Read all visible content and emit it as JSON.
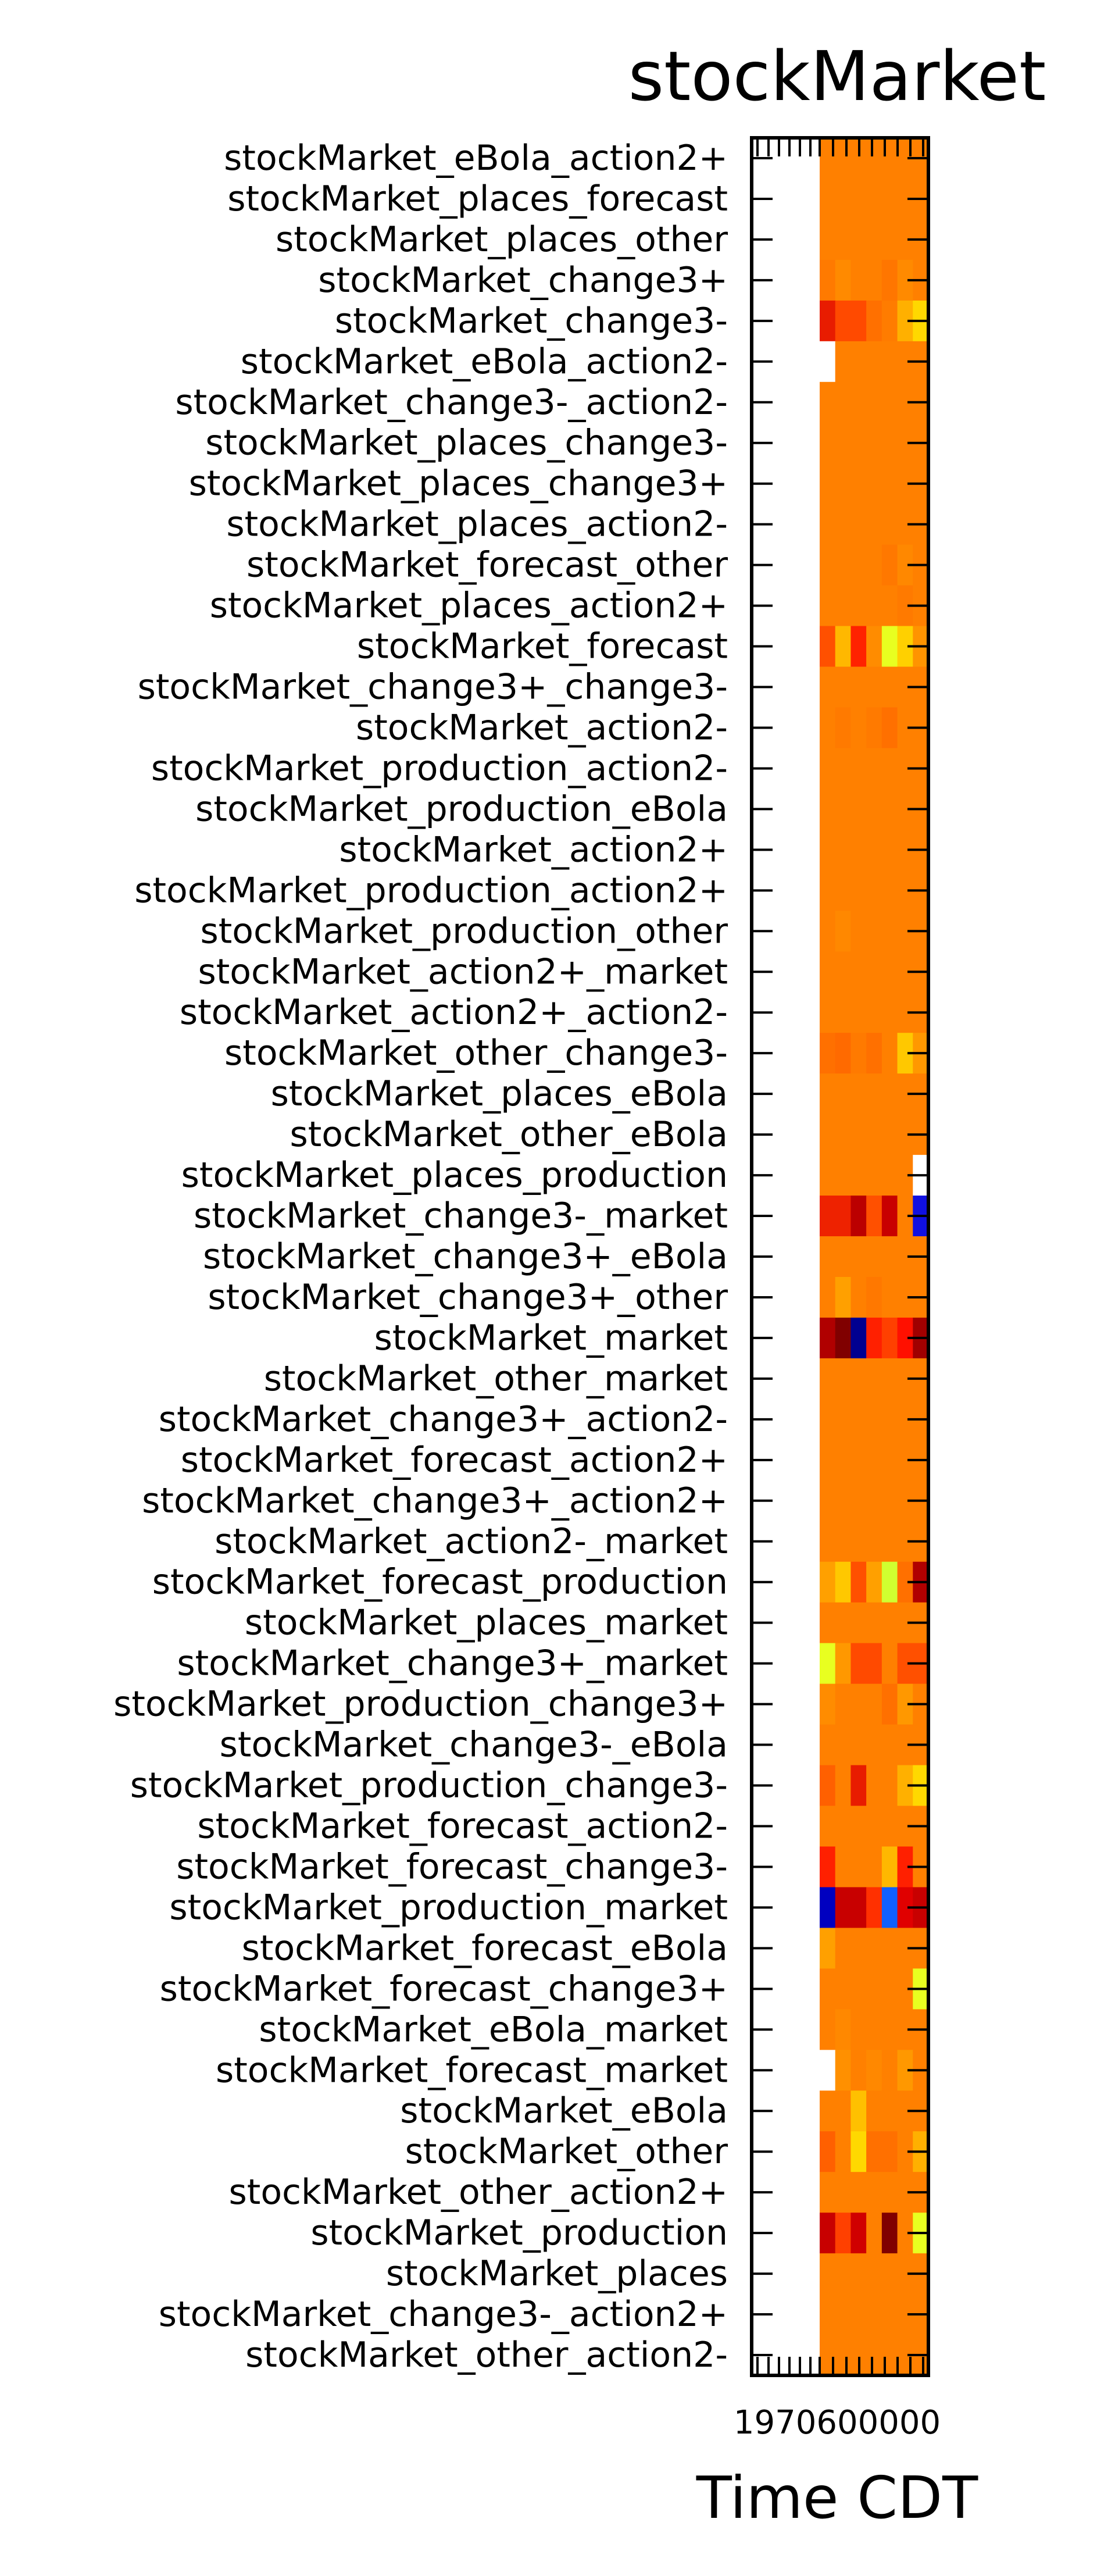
{
  "chart_data": {
    "type": "heatmap",
    "title": "stockMarket",
    "xlabel": "Time CDT",
    "ylabel": "",
    "x_tick_label_overlap": "1970600000",
    "row_labels": [
      "stockMarket_eBola_action2+",
      "stockMarket_places_forecast",
      "stockMarket_places_other",
      "stockMarket_change3+",
      "stockMarket_change3-",
      "stockMarket_eBola_action2-",
      "stockMarket_change3-_action2-",
      "stockMarket_places_change3-",
      "stockMarket_places_change3+",
      "stockMarket_places_action2-",
      "stockMarket_forecast_other",
      "stockMarket_places_action2+",
      "stockMarket_forecast",
      "stockMarket_change3+_change3-",
      "stockMarket_action2-",
      "stockMarket_production_action2-",
      "stockMarket_production_eBola",
      "stockMarket_action2+",
      "stockMarket_production_action2+",
      "stockMarket_production_other",
      "stockMarket_action2+_market",
      "stockMarket_action2+_action2-",
      "stockMarket_other_change3-",
      "stockMarket_places_eBola",
      "stockMarket_other_eBola",
      "stockMarket_places_production",
      "stockMarket_change3-_market",
      "stockMarket_change3+_eBola",
      "stockMarket_change3+_other",
      "stockMarket_market",
      "stockMarket_other_market",
      "stockMarket_change3+_action2-",
      "stockMarket_forecast_action2+",
      "stockMarket_change3+_action2+",
      "stockMarket_action2-_market",
      "stockMarket_forecast_production",
      "stockMarket_places_market",
      "stockMarket_change3+_market",
      "stockMarket_production_change3+",
      "stockMarket_change3-_eBola",
      "stockMarket_production_change3-",
      "stockMarket_forecast_action2-",
      "stockMarket_forecast_change3-",
      "stockMarket_production_market",
      "stockMarket_forecast_eBola",
      "stockMarket_forecast_change3+",
      "stockMarket_eBola_market",
      "stockMarket_forecast_market",
      "stockMarket_eBola",
      "stockMarket_other",
      "stockMarket_other_action2+",
      "stockMarket_production",
      "stockMarket_places",
      "stockMarket_change3-_action2+",
      "stockMarket_other_action2-"
    ],
    "columns": 7,
    "colormap": "jet",
    "cell_colors": [
      [
        "#ff8000",
        "#ff8000",
        "#ff8000",
        "#ff8000",
        "#ff8000",
        "#ff8000",
        "#ff8000"
      ],
      [
        "#ff8000",
        "#ff8000",
        "#ff8000",
        "#ff8000",
        "#ff8000",
        "#ff8000",
        "#ff8000"
      ],
      [
        "#ff8000",
        "#ff8000",
        "#ff8000",
        "#ff8000",
        "#ff8000",
        "#ff8000",
        "#ff8000"
      ],
      [
        "#ff7a00",
        "#ff8a00",
        "#ff8000",
        "#ff8000",
        "#ff7600",
        "#ff8a00",
        "#ff8000"
      ],
      [
        "#e81c00",
        "#ff4a00",
        "#ff4a00",
        "#ff7000",
        "#ff7c00",
        "#ffb000",
        "#ffd800"
      ],
      [
        "#ffffff",
        "#ff8000",
        "#ff8000",
        "#ff8000",
        "#ff8000",
        "#ff8000",
        "#ff8000"
      ],
      [
        "#ff8000",
        "#ff8000",
        "#ff8000",
        "#ff8000",
        "#ff8000",
        "#ff8000",
        "#ff8000"
      ],
      [
        "#ff8000",
        "#ff8000",
        "#ff8000",
        "#ff8000",
        "#ff8000",
        "#ff8000",
        "#ff8000"
      ],
      [
        "#ff8000",
        "#ff8000",
        "#ff8000",
        "#ff8000",
        "#ff8000",
        "#ff8000",
        "#ff8000"
      ],
      [
        "#ff8000",
        "#ff8000",
        "#ff8000",
        "#ff8000",
        "#ff8000",
        "#ff8000",
        "#ff8000"
      ],
      [
        "#ff8000",
        "#ff8000",
        "#ff8000",
        "#ff8000",
        "#ff7800",
        "#ff8800",
        "#ff8000"
      ],
      [
        "#ff8000",
        "#ff8000",
        "#ff8000",
        "#ff8000",
        "#ff8000",
        "#ff7a00",
        "#ff8000"
      ],
      [
        "#ff5000",
        "#ffb800",
        "#ff2200",
        "#ff8c00",
        "#e8ff20",
        "#ffd000",
        "#ff9400"
      ],
      [
        "#ff8000",
        "#ff8000",
        "#ff8000",
        "#ff8000",
        "#ff8000",
        "#ff8000",
        "#ff8000"
      ],
      [
        "#ff8000",
        "#ff7a00",
        "#ff8000",
        "#ff7a00",
        "#ff7000",
        "#ff8000",
        "#ff8000"
      ],
      [
        "#ff8000",
        "#ff8000",
        "#ff8000",
        "#ff8000",
        "#ff8000",
        "#ff8000",
        "#ff8000"
      ],
      [
        "#ff8000",
        "#ff8000",
        "#ff8000",
        "#ff8000",
        "#ff8000",
        "#ff8000",
        "#ff8000"
      ],
      [
        "#ff8000",
        "#ff8000",
        "#ff8000",
        "#ff8000",
        "#ff8000",
        "#ff8000",
        "#ff8000"
      ],
      [
        "#ff8000",
        "#ff8000",
        "#ff8000",
        "#ff8000",
        "#ff8000",
        "#ff8000",
        "#ff8000"
      ],
      [
        "#ff8000",
        "#ff8800",
        "#ff8000",
        "#ff8000",
        "#ff8000",
        "#ff8000",
        "#ff8000"
      ],
      [
        "#ff8000",
        "#ff8000",
        "#ff8000",
        "#ff8000",
        "#ff8000",
        "#ff8000",
        "#ff8000"
      ],
      [
        "#ff8000",
        "#ff8000",
        "#ff8000",
        "#ff8000",
        "#ff8000",
        "#ff8000",
        "#ff8000"
      ],
      [
        "#ff7000",
        "#ff6a00",
        "#ff7a00",
        "#ff7000",
        "#ff8000",
        "#ffc800",
        "#ff9800"
      ],
      [
        "#ff8000",
        "#ff8000",
        "#ff8000",
        "#ff8000",
        "#ff8000",
        "#ff8000",
        "#ff8000"
      ],
      [
        "#ff8000",
        "#ff8000",
        "#ff8000",
        "#ff8000",
        "#ff8000",
        "#ff8000",
        "#ff8000"
      ],
      [
        "#ff8000",
        "#ff8000",
        "#ff8000",
        "#ff8000",
        "#ff8000",
        "#ff8000",
        "#ffffff"
      ],
      [
        "#ee2200",
        "#ee2200",
        "#bb0000",
        "#ff5000",
        "#c80000",
        "#ff8000",
        "#1010e0"
      ],
      [
        "#ff8000",
        "#ff8000",
        "#ff8000",
        "#ff8000",
        "#ff8000",
        "#ff8000",
        "#ff8000"
      ],
      [
        "#ff8000",
        "#ffa000",
        "#ff8000",
        "#ff7800",
        "#ff8000",
        "#ff8000",
        "#ff8000"
      ],
      [
        "#b00000",
        "#800000",
        "#000090",
        "#ff2000",
        "#ff4000",
        "#ff1000",
        "#a00000"
      ],
      [
        "#ff8000",
        "#ff8000",
        "#ff8000",
        "#ff8000",
        "#ff8000",
        "#ff8000",
        "#ff8000"
      ],
      [
        "#ff8000",
        "#ff8000",
        "#ff8000",
        "#ff8000",
        "#ff8000",
        "#ff8000",
        "#ff8000"
      ],
      [
        "#ff8000",
        "#ff8000",
        "#ff8000",
        "#ff8000",
        "#ff8000",
        "#ff8000",
        "#ff8000"
      ],
      [
        "#ff8000",
        "#ff8000",
        "#ff8000",
        "#ff8000",
        "#ff8000",
        "#ff8000",
        "#ff8000"
      ],
      [
        "#ff8000",
        "#ff8000",
        "#ff8000",
        "#ff8000",
        "#ff8000",
        "#ff8000",
        "#ff8000"
      ],
      [
        "#ffa000",
        "#ffc800",
        "#ff5000",
        "#ffa000",
        "#d0ff30",
        "#ff7000",
        "#b00000"
      ],
      [
        "#ff8000",
        "#ff8000",
        "#ff8000",
        "#ff8000",
        "#ff8000",
        "#ff8000",
        "#ff8000"
      ],
      [
        "#e8ff20",
        "#ff9800",
        "#ff4a00",
        "#ff4a00",
        "#ff8000",
        "#ff5000",
        "#ff5000"
      ],
      [
        "#ff8c00",
        "#ff8000",
        "#ff8000",
        "#ff8000",
        "#ff7000",
        "#ff9800",
        "#ff8000"
      ],
      [
        "#ff8000",
        "#ff8000",
        "#ff8000",
        "#ff8000",
        "#ff8000",
        "#ff8000",
        "#ff8000"
      ],
      [
        "#ff6000",
        "#ff8000",
        "#e81c00",
        "#ff8000",
        "#ff8000",
        "#ffb000",
        "#ffd800"
      ],
      [
        "#ff8000",
        "#ff8000",
        "#ff8000",
        "#ff8000",
        "#ff8000",
        "#ff8000",
        "#ff8000"
      ],
      [
        "#ff2000",
        "#ff8000",
        "#ff8000",
        "#ff8000",
        "#ffb800",
        "#ff2000",
        "#ff8000"
      ],
      [
        "#0000c0",
        "#c80000",
        "#c80000",
        "#ff3000",
        "#1060ff",
        "#e00000",
        "#c80000"
      ],
      [
        "#ffa000",
        "#ff8000",
        "#ff8000",
        "#ff8000",
        "#ff8000",
        "#ff8000",
        "#ff8000"
      ],
      [
        "#ff8000",
        "#ff8000",
        "#ff8000",
        "#ff8000",
        "#ff8000",
        "#ff8000",
        "#e8ff20"
      ],
      [
        "#ff8000",
        "#ff8800",
        "#ff8000",
        "#ff8000",
        "#ff8000",
        "#ff8000",
        "#ff8000"
      ],
      [
        "#ffffff",
        "#ff9000",
        "#ff8000",
        "#ff8800",
        "#ff8000",
        "#ff9800",
        "#ff8000"
      ],
      [
        "#ff8000",
        "#ff8000",
        "#ffc000",
        "#ff8000",
        "#ff8000",
        "#ff8000",
        "#ff8000"
      ],
      [
        "#ff6000",
        "#ff8000",
        "#ffd800",
        "#ff7000",
        "#ff7000",
        "#ff8000",
        "#ffb000"
      ],
      [
        "#ff8000",
        "#ff8000",
        "#ff8000",
        "#ff8000",
        "#ff8000",
        "#ff8000",
        "#ff8000"
      ],
      [
        "#c80000",
        "#ff4000",
        "#d00000",
        "#ff8000",
        "#800000",
        "#ff8000",
        "#e8ff20"
      ],
      [
        "#ff8000",
        "#ff8000",
        "#ff8000",
        "#ff8000",
        "#ff8000",
        "#ff8000",
        "#ff8000"
      ],
      [
        "#ff8000",
        "#ff8000",
        "#ff8000",
        "#ff8000",
        "#ff8000",
        "#ff8000",
        "#ff8000"
      ],
      [
        "#ff8000",
        "#ff8000",
        "#ff8000",
        "#ff8000",
        "#ff8000",
        "#ff8000",
        "#ff8000"
      ]
    ],
    "grid": false,
    "legend": "none"
  }
}
